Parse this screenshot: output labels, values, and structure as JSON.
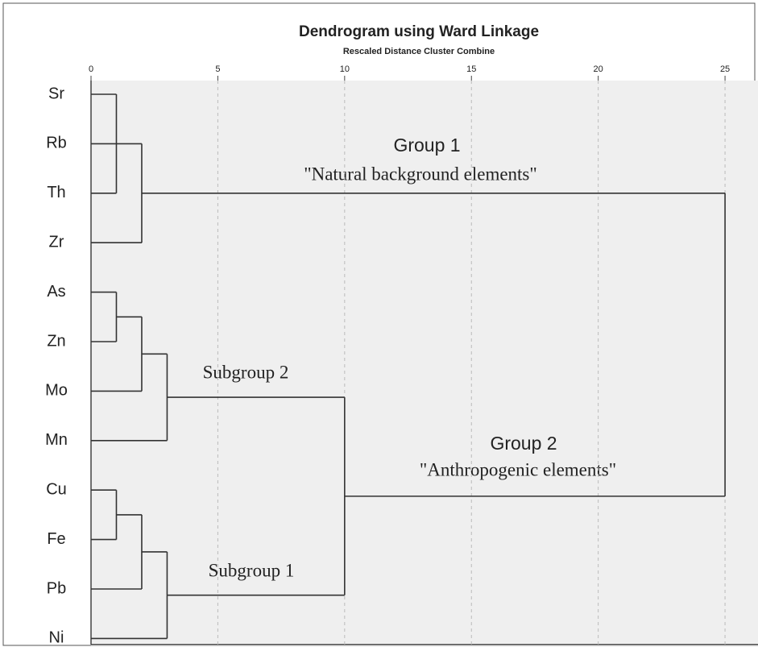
{
  "chart_data": {
    "type": "dendrogram",
    "title": "Dendrogram using Ward Linkage",
    "subtitle": "Rescaled Distance Cluster Combine",
    "leaves": [
      "Sr",
      "Rb",
      "Th",
      "Zr",
      "As",
      "Zn",
      "Mo",
      "Mn",
      "Cu",
      "Fe",
      "Pb",
      "Ni"
    ],
    "merges": [
      {
        "children": [
          0,
          2
        ],
        "distance": 1
      },
      {
        "children": [
          12,
          1,
          3
        ],
        "distance": 2
      },
      {
        "children": [
          4,
          5
        ],
        "distance": 1
      },
      {
        "children": [
          14,
          6
        ],
        "distance": 2
      },
      {
        "children": [
          15,
          7
        ],
        "distance": 3
      },
      {
        "children": [
          8,
          9
        ],
        "distance": 1
      },
      {
        "children": [
          17,
          10
        ],
        "distance": 2
      },
      {
        "children": [
          18,
          11
        ],
        "distance": 3
      },
      {
        "children": [
          16,
          19
        ],
        "distance": 10
      },
      {
        "children": [
          13,
          20
        ],
        "distance": 25
      }
    ],
    "xlim": [
      0,
      26.3
    ],
    "xticks": [
      0,
      5,
      10,
      15,
      20,
      25
    ],
    "grid": true,
    "color": "#333333",
    "annotations": [
      "Group 1",
      "\"Natural background elements\"",
      "Subgroup 2",
      "Group 2",
      "\"Anthropogenic elements\"",
      "Subgroup 1"
    ]
  }
}
